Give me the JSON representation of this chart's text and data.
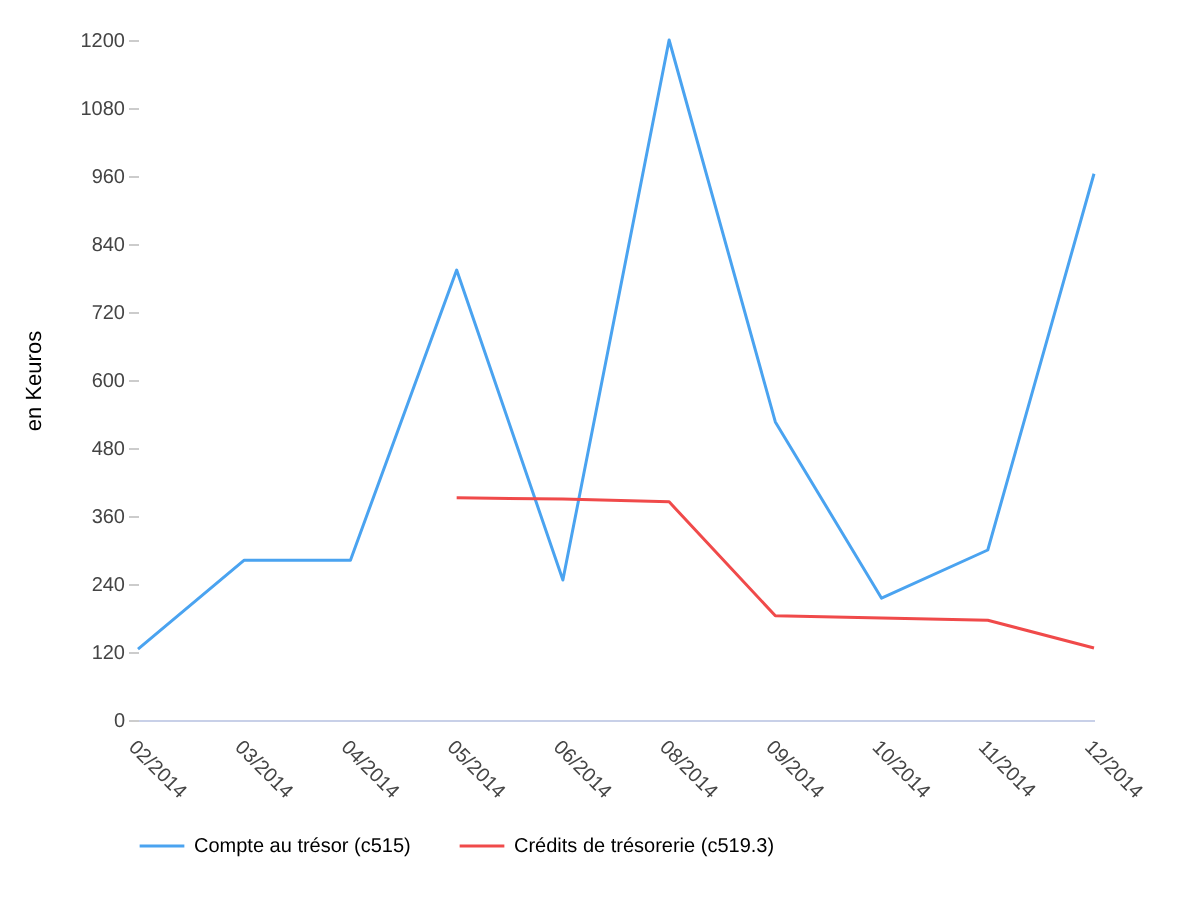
{
  "chart_data": {
    "type": "line",
    "ylabel": "en Keuros",
    "categories": [
      "02/2014",
      "03/2014",
      "04/2014",
      "05/2014",
      "06/2014",
      "08/2014",
      "09/2014",
      "10/2014",
      "11/2014",
      "12/2014"
    ],
    "series": [
      {
        "name": "Compte au trésor (c515)",
        "color": "#4aa3f0",
        "values": [
          125,
          282,
          282,
          794,
          247,
          1200,
          526,
          215,
          300,
          964
        ]
      },
      {
        "name": "Crédits de trésorerie (c519.3)",
        "color": "#f04a4a",
        "values": [
          null,
          null,
          null,
          392,
          390,
          385,
          184,
          180,
          176,
          127
        ]
      }
    ],
    "ylim": [
      0,
      1200
    ],
    "yticks": [
      0,
      120,
      240,
      360,
      480,
      600,
      720,
      840,
      960,
      1080,
      1200
    ],
    "grid": false,
    "legend": "bottom",
    "marker": "none",
    "line_style": "solid"
  }
}
